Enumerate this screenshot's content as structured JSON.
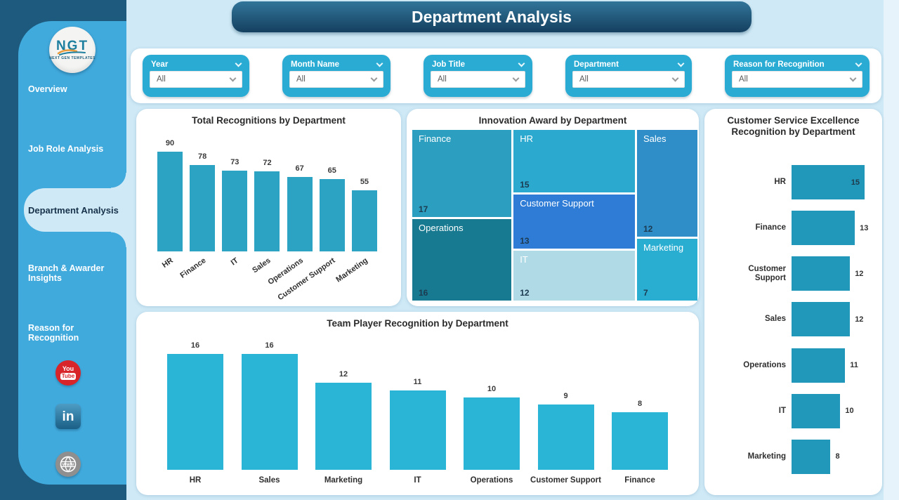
{
  "page": {
    "title": "Department Analysis"
  },
  "colors": {
    "sidebar_dark": "#1d5a7e",
    "sidebar_panel": "#41aadd",
    "main_background": "#cfe9f6",
    "slicer_teal": "#29abd3",
    "banner_gradient_top": "#31759a",
    "banner_gradient_bottom": "#15405f"
  },
  "sidebar": {
    "logo": {
      "acronym": "NGT",
      "caption": "NEXT GEN TEMPLATES"
    },
    "items": [
      {
        "label": "Overview",
        "active": false
      },
      {
        "label": "Job Role Analysis",
        "active": false
      },
      {
        "label": "Department Analysis",
        "active": true
      },
      {
        "label": "Branch & Awarder Insights",
        "active": false
      },
      {
        "label": "Reason for Recognition",
        "active": false
      }
    ],
    "social": [
      {
        "name": "youtube",
        "text_top": "You",
        "text_bottom": "Tube"
      },
      {
        "name": "linkedin",
        "text": "in"
      },
      {
        "name": "website",
        "text": "www"
      }
    ]
  },
  "filters": [
    {
      "label": "Year",
      "value": "All"
    },
    {
      "label": "Month Name",
      "value": "All"
    },
    {
      "label": "Job Title",
      "value": "All"
    },
    {
      "label": "Department",
      "value": "All"
    },
    {
      "label": "Reason for Recognition",
      "value": "All"
    }
  ],
  "chart_data": [
    {
      "type": "bar",
      "title": "Total Recognitions by Department",
      "categories": [
        "HR",
        "Finance",
        "IT",
        "Sales",
        "Operations",
        "Customer Support",
        "Marketing"
      ],
      "values": [
        90,
        78,
        73,
        72,
        67,
        65,
        55
      ],
      "bar_color": "#2da3c4",
      "ylim": [
        0,
        90
      ],
      "value_labels": true,
      "x_label_rotation": -35,
      "grid": false,
      "legend": "none"
    },
    {
      "type": "treemap",
      "title": "Innovation Award by Department",
      "items": [
        {
          "name": "Finance",
          "value": 17,
          "color": "#2c9fc0"
        },
        {
          "name": "Operations",
          "value": 16,
          "color": "#177a90"
        },
        {
          "name": "HR",
          "value": 15,
          "color": "#2ba9ce"
        },
        {
          "name": "Customer Support",
          "value": 13,
          "color": "#2e7cd6"
        },
        {
          "name": "IT",
          "value": 12,
          "color": "#b0dae5"
        },
        {
          "name": "Sales",
          "value": 12,
          "color": "#2f8dc8"
        },
        {
          "name": "Marketing",
          "value": 7,
          "color": "#29aed2"
        }
      ],
      "layout_columns": [
        {
          "width": 0.353,
          "items": [
            "Finance",
            "Operations"
          ]
        },
        {
          "width": 0.432,
          "items": [
            "HR",
            "Customer Support",
            "IT"
          ]
        },
        {
          "width": 0.215,
          "items": [
            "Sales",
            "Marketing"
          ]
        }
      ]
    },
    {
      "type": "bar-horizontal",
      "title": "Customer Service Excellence Recognition by Department",
      "categories": [
        "HR",
        "Finance",
        "Customer Support",
        "Sales",
        "Operations",
        "IT",
        "Marketing"
      ],
      "values": [
        15,
        13,
        12,
        12,
        11,
        10,
        8
      ],
      "bar_color": "#2197ba",
      "xlim": [
        0,
        15
      ],
      "value_labels": true,
      "grid": false,
      "legend": "none"
    },
    {
      "type": "bar",
      "title": "Team Player Recognition by Department",
      "categories": [
        "HR",
        "Sales",
        "Marketing",
        "IT",
        "Operations",
        "Customer Support",
        "Finance"
      ],
      "values": [
        16,
        16,
        12,
        11,
        10,
        9,
        8
      ],
      "bar_color": "#2ab5d6",
      "ylim": [
        0,
        16
      ],
      "value_labels": true,
      "x_label_rotation": 0,
      "grid": false,
      "legend": "none"
    }
  ]
}
